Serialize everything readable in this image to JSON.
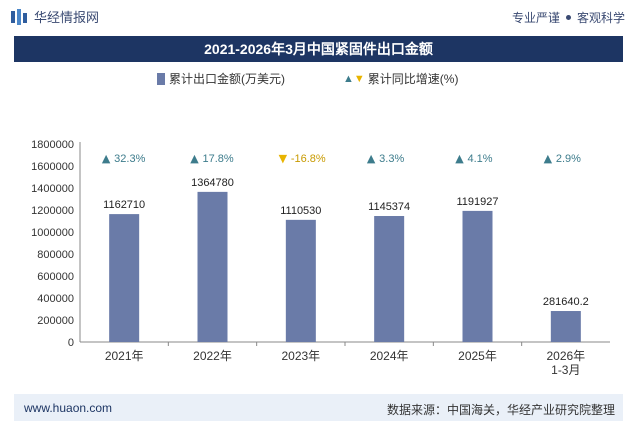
{
  "header": {
    "brand": "华经情报网",
    "slogan_left": "专业严谨",
    "slogan_right": "客观科学"
  },
  "colors": {
    "bar": "#6a7ba8",
    "up": "#3d7c8c",
    "down": "#e8b400",
    "title_bg": "#1d3563"
  },
  "chart_data": {
    "type": "bar",
    "title": "2021-2026年3月中国紧固件出口金额",
    "categories": [
      "2021年",
      "2022年",
      "2023年",
      "2024年",
      "2025年",
      "2026年\n1-3月"
    ],
    "series": [
      {
        "name": "累计出口金额(万美元)",
        "values": [
          1162710,
          1364780,
          1110530,
          1145374,
          1191927,
          281640.2
        ]
      },
      {
        "name": "累计同比增速(%)",
        "values": [
          32.3,
          17.8,
          -16.8,
          3.3,
          4.1,
          2.9
        ]
      }
    ],
    "value_labels": [
      "1162710",
      "1364780",
      "1110530",
      "1145374",
      "1191927",
      "281640.2"
    ],
    "growth_labels": [
      "32.3%",
      "17.8%",
      "-16.8%",
      "3.3%",
      "4.1%",
      "2.9%"
    ],
    "ylim": [
      0,
      1800000
    ],
    "yticks": [
      0,
      200000,
      400000,
      600000,
      800000,
      1000000,
      1200000,
      1400000,
      1600000,
      1800000
    ],
    "legend_position": "top"
  },
  "footer": {
    "website": "www.huaon.com",
    "source": "数据来源：中国海关，华经产业研究院整理"
  }
}
